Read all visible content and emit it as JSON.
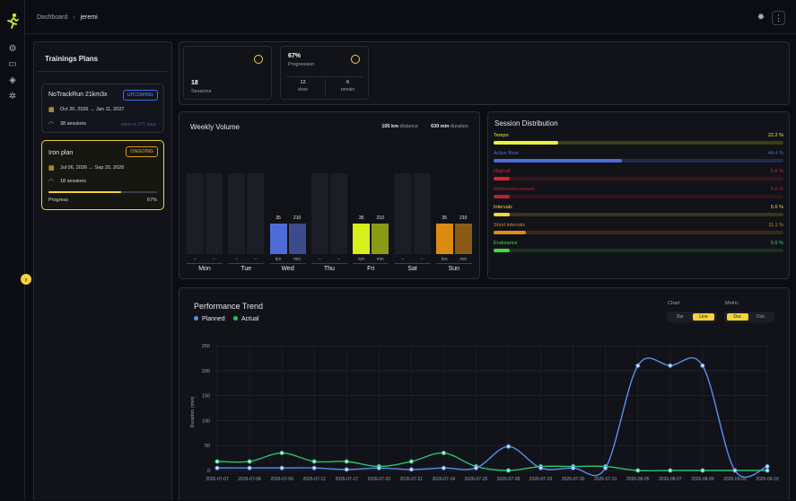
{
  "breadcrumb": {
    "root": "Dashboard",
    "current": "jeremi"
  },
  "plans": {
    "title": "Trainings Plans",
    "items": [
      {
        "name": "NoTrackRun 21km3x",
        "badge": "UPCOMING",
        "dates": "Oct 20, 2026 → Jan 11, 2027",
        "sessions": "38 sessions",
        "link": "starts in 271 days"
      },
      {
        "name": "Iron plan",
        "badge": "ONGOING",
        "dates": "Jul 06, 2026 → Sep 20, 2026",
        "sessions": "18 sessions",
        "progress_label": "Progress",
        "progress_value": "67%",
        "progress": 0.67
      }
    ]
  },
  "stats": {
    "sessions_value": "18",
    "sessions_label": "Sessions",
    "progression_value": "67%",
    "progression_label": "Progression",
    "done_value": "12",
    "done_label": "done",
    "remain_value": "6",
    "remain_label": "remain"
  },
  "weekly": {
    "title": "Weekly Volume",
    "distance_value": "105 km",
    "distance_label": "distance",
    "duration_value": "630 min",
    "duration_label": "duration",
    "dash": "–",
    "km_unit": "km",
    "min_unit": "min",
    "days": [
      {
        "day": "Mon",
        "km": null,
        "min": null
      },
      {
        "day": "Tue",
        "km": null,
        "min": null
      },
      {
        "day": "Wed",
        "km": 35,
        "min": 210,
        "km_label": "35",
        "min_label": "210",
        "km_color": "#4f6bd8",
        "min_color": "#3d4a8c"
      },
      {
        "day": "Thu",
        "km": null,
        "min": null
      },
      {
        "day": "Fri",
        "km": 35,
        "min": 210,
        "km_label": "35",
        "min_label": "210",
        "km_color": "#d7ef1a",
        "min_color": "#8a9a14"
      },
      {
        "day": "Sat",
        "km": null,
        "min": null
      },
      {
        "day": "Sun",
        "km": 35,
        "min": 210,
        "km_label": "35",
        "min_label": "210",
        "km_color": "#dc8a12",
        "min_color": "#8a5a16"
      }
    ]
  },
  "distribution": {
    "title": "Session Distribution",
    "items": [
      {
        "label": "Tempo",
        "pct": "22.2 %",
        "value": 22.2,
        "color": "#e9f23a",
        "track": "#3a3d18"
      },
      {
        "label": "Active Rest",
        "pct": "44.4 %",
        "value": 44.4,
        "color": "#4f6bd8",
        "track": "#1f2a4d"
      },
      {
        "label": "Objectif",
        "pct": "5.6 %",
        "value": 5.6,
        "color": "#e0202a",
        "track": "#3b1418"
      },
      {
        "label": "Withinonkmeasure...",
        "pct": "5.6 %",
        "value": 5.6,
        "color": "#c21e3a",
        "track": "#33141c"
      },
      {
        "label": "Intervals",
        "pct": "5.6 %",
        "value": 5.6,
        "color": "#f4d33b",
        "track": "#3a3418"
      },
      {
        "label": "Short intervals",
        "pct": "11.1 %",
        "value": 11.1,
        "color": "#e08a1e",
        "track": "#3a2816"
      },
      {
        "label": "Endurance",
        "pct": "5.6 %",
        "value": 5.6,
        "color": "#3ade3a",
        "track": "#16331a"
      }
    ]
  },
  "trend": {
    "title": "Performance Trend",
    "chart_label": "Chart",
    "chart_options": [
      "Bar",
      "Line"
    ],
    "chart_selected": "Line",
    "metric_label": "Metric",
    "metric_options": [
      "Dur.",
      "Dist."
    ],
    "metric_selected": "Dur."
  },
  "chart_data": {
    "type": "line",
    "title": "Performance Trend",
    "ylabel": "Duration (min)",
    "ylim": [
      0,
      250
    ],
    "yticks": [
      0,
      50,
      100,
      150,
      200,
      250
    ],
    "grid": true,
    "legend": "top-left",
    "x": [
      "2026-07-07",
      "2026-07-08",
      "2026-07-09",
      "2026-07-12",
      "2026-07-17",
      "2026-07-20",
      "2026-07-21",
      "2026-07-24",
      "2026-07-25",
      "2026-07-28",
      "2026-07-29",
      "2026-07-30",
      "2026-07-31",
      "2026-08-05",
      "2026-08-07",
      "2026-08-09",
      "2026-09-09",
      "2026-09-16"
    ],
    "series": [
      {
        "name": "Planned",
        "color": "#5b8ff0",
        "values": [
          5,
          5,
          5,
          5,
          2,
          5,
          2,
          5,
          5,
          48,
          5,
          5,
          5,
          210,
          210,
          210,
          0,
          8
        ]
      },
      {
        "name": "Actual",
        "color": "#27c46a",
        "values": [
          18,
          18,
          35,
          18,
          18,
          8,
          18,
          35,
          8,
          0,
          8,
          8,
          8,
          0,
          0,
          0,
          0,
          0
        ]
      }
    ]
  }
}
